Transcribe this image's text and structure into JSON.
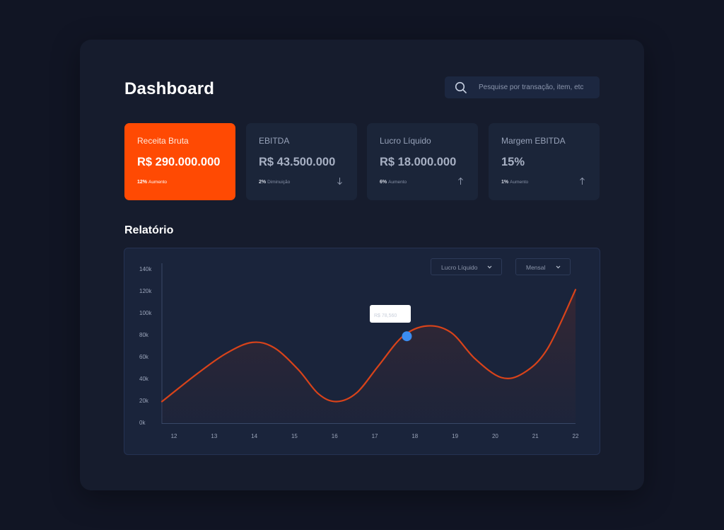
{
  "page": {
    "title": "Dashboard",
    "search_placeholder": "Pesquise por transação, item, etc",
    "section_title": "Relatório"
  },
  "cards": [
    {
      "label": "Receita Bruta",
      "value": "R$ 290.000.000",
      "delta_value": "12%",
      "delta_text": "Aumento",
      "direction": "none",
      "active": true
    },
    {
      "label": "EBITDA",
      "value": "R$ 43.500.000",
      "delta_value": "2%",
      "delta_text": "Diminuição",
      "direction": "down",
      "active": false
    },
    {
      "label": "Lucro Líquido",
      "value": "R$ 18.000.000",
      "delta_value": "6%",
      "delta_text": "Aumento",
      "direction": "up",
      "active": false
    },
    {
      "label": "Margem EBITDA",
      "value": "15%",
      "delta_value": "1%",
      "delta_text": "Aumento",
      "direction": "up",
      "active": false
    }
  ],
  "filters": {
    "metric": "Lucro Líquido",
    "period": "Mensal"
  },
  "tooltip": {
    "title": "",
    "value": "R$ 78,560"
  },
  "colors": {
    "accent": "#ff4a03",
    "line": "#d8431a",
    "marker": "#3b8cf0",
    "background": "#111524",
    "panel": "#161c2d",
    "card": "#1b2539"
  },
  "chart_data": {
    "type": "area",
    "x": [
      12,
      13,
      14,
      15,
      16,
      17,
      18,
      19,
      20,
      21,
      22
    ],
    "xlim": [
      11.7,
      22
    ],
    "ylim": [
      0,
      140000
    ],
    "x_ticks": [
      "12",
      "13",
      "14",
      "15",
      "16",
      "17",
      "18",
      "19",
      "20",
      "21",
      "22"
    ],
    "y_ticks": [
      "0k",
      "20k",
      "40k",
      "60k",
      "80k",
      "100k",
      "120k",
      "140k"
    ],
    "series": [
      {
        "name": "Lucro Líquido",
        "points": [
          [
            11.7,
            19000
          ],
          [
            12.6,
            45000
          ],
          [
            13.3,
            63000
          ],
          [
            13.95,
            73000
          ],
          [
            14.5,
            68000
          ],
          [
            15.1,
            48000
          ],
          [
            15.6,
            26000
          ],
          [
            16.05,
            19000
          ],
          [
            16.55,
            27000
          ],
          [
            17.1,
            52000
          ],
          [
            17.7,
            78500
          ],
          [
            18.3,
            88000
          ],
          [
            18.9,
            82000
          ],
          [
            19.5,
            58000
          ],
          [
            20.15,
            41000
          ],
          [
            20.7,
            45000
          ],
          [
            21.3,
            67000
          ],
          [
            22,
            121000
          ]
        ]
      }
    ],
    "highlight": {
      "x": 17.8,
      "y": 78560
    },
    "grid": false,
    "title": "",
    "xlabel": "",
    "ylabel": ""
  }
}
